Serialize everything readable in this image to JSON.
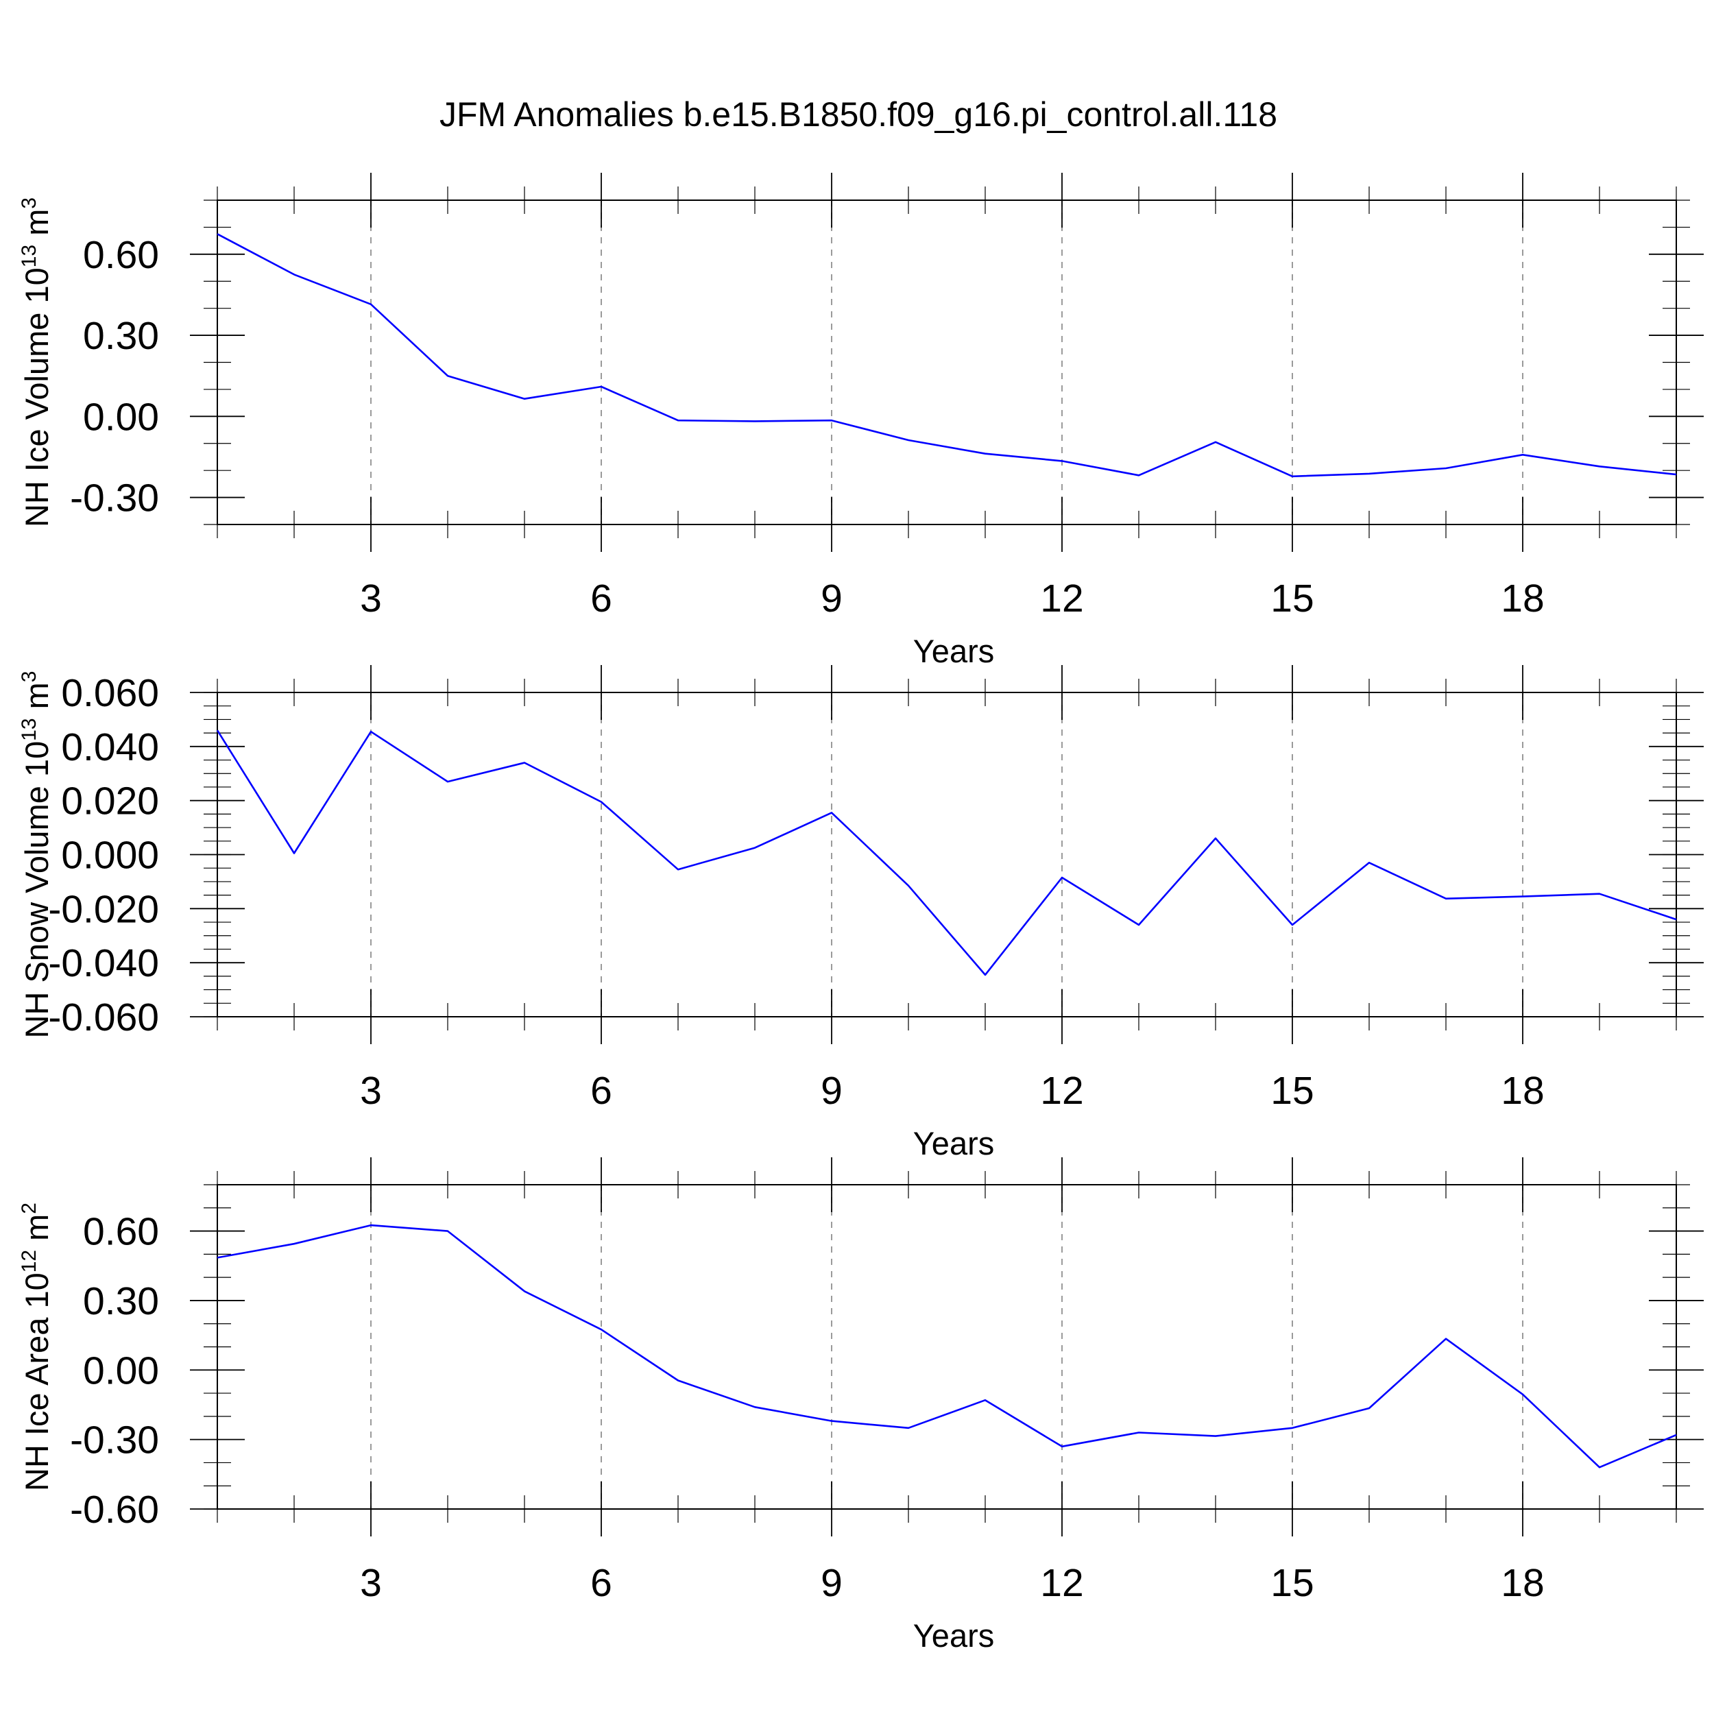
{
  "figure": {
    "title": "JFM Anomalies b.e15.B1850.f09_g16.pi_control.all.118"
  },
  "chart_data": [
    {
      "type": "line",
      "xlabel": "Years",
      "ylabel": {
        "prefix": "NH Ice Volume 10",
        "exponent": "13",
        "unit": " m",
        "unit_exponent": "3"
      },
      "xlim": [
        1,
        20
      ],
      "ylim": [
        -0.4,
        0.8
      ],
      "x_ticks": [
        3,
        6,
        9,
        12,
        15,
        18
      ],
      "x_tick_labels": [
        "3",
        "6",
        "9",
        "12",
        "15",
        "18"
      ],
      "y_ticks": [
        -0.3,
        0.0,
        0.3,
        0.6
      ],
      "y_tick_labels": [
        "-0.30",
        "0.00",
        "0.30",
        "0.60"
      ],
      "y_minor_step": 0.1,
      "vertical_dashed_grid": true,
      "line_color": "#0000ff",
      "x": [
        1,
        2,
        3,
        4,
        5,
        6,
        7,
        8,
        9,
        10,
        11,
        12,
        13,
        14,
        15,
        16,
        17,
        18,
        19,
        20
      ],
      "values": [
        0.675,
        0.525,
        0.415,
        0.15,
        0.065,
        0.11,
        -0.015,
        -0.018,
        -0.015,
        -0.088,
        -0.138,
        -0.165,
        -0.218,
        -0.095,
        -0.222,
        -0.212,
        -0.192,
        -0.142,
        -0.185,
        -0.215
      ]
    },
    {
      "type": "line",
      "xlabel": "Years",
      "ylabel": {
        "prefix": "NH Snow Volume 10",
        "exponent": "13",
        "unit": " m",
        "unit_exponent": "3"
      },
      "xlim": [
        1,
        20
      ],
      "ylim": [
        -0.06,
        0.06
      ],
      "x_ticks": [
        3,
        6,
        9,
        12,
        15,
        18
      ],
      "x_tick_labels": [
        "3",
        "6",
        "9",
        "12",
        "15",
        "18"
      ],
      "y_ticks": [
        -0.06,
        -0.04,
        -0.02,
        0.0,
        0.02,
        0.04,
        0.06
      ],
      "y_tick_labels": [
        "-0.060",
        "-0.040",
        "-0.020",
        "0.000",
        "0.020",
        "0.040",
        "0.060"
      ],
      "y_minor_step": 0.005,
      "vertical_dashed_grid": true,
      "line_color": "#0000ff",
      "x": [
        1,
        2,
        3,
        4,
        5,
        6,
        7,
        8,
        9,
        10,
        11,
        12,
        13,
        14,
        15,
        16,
        17,
        18,
        19,
        20
      ],
      "values": [
        0.046,
        0.0005,
        0.0455,
        0.027,
        0.034,
        0.0195,
        -0.0055,
        0.0025,
        0.0155,
        -0.0115,
        -0.0445,
        -0.0085,
        -0.026,
        0.006,
        -0.026,
        -0.003,
        -0.0163,
        -0.0155,
        -0.0145,
        -0.024
      ]
    },
    {
      "type": "line",
      "xlabel": "Years",
      "ylabel": {
        "prefix": "NH Ice Area 10",
        "exponent": "12",
        "unit": " m",
        "unit_exponent": "2"
      },
      "xlim": [
        1,
        20
      ],
      "ylim": [
        -0.6,
        0.8
      ],
      "x_ticks": [
        3,
        6,
        9,
        12,
        15,
        18
      ],
      "x_tick_labels": [
        "3",
        "6",
        "9",
        "12",
        "15",
        "18"
      ],
      "y_ticks": [
        -0.6,
        -0.3,
        0.0,
        0.3,
        0.6
      ],
      "y_tick_labels": [
        "-0.60",
        "-0.30",
        "0.00",
        "0.30",
        "0.60"
      ],
      "y_minor_step": 0.1,
      "vertical_dashed_grid": true,
      "line_color": "#0000ff",
      "x": [
        1,
        2,
        3,
        4,
        5,
        6,
        7,
        8,
        9,
        10,
        11,
        12,
        13,
        14,
        15,
        16,
        17,
        18,
        19,
        20
      ],
      "values": [
        0.485,
        0.545,
        0.625,
        0.6,
        0.34,
        0.175,
        -0.045,
        -0.16,
        -0.22,
        -0.25,
        -0.13,
        -0.33,
        -0.27,
        -0.285,
        -0.25,
        -0.165,
        0.135,
        -0.105,
        -0.42,
        -0.28
      ]
    }
  ]
}
